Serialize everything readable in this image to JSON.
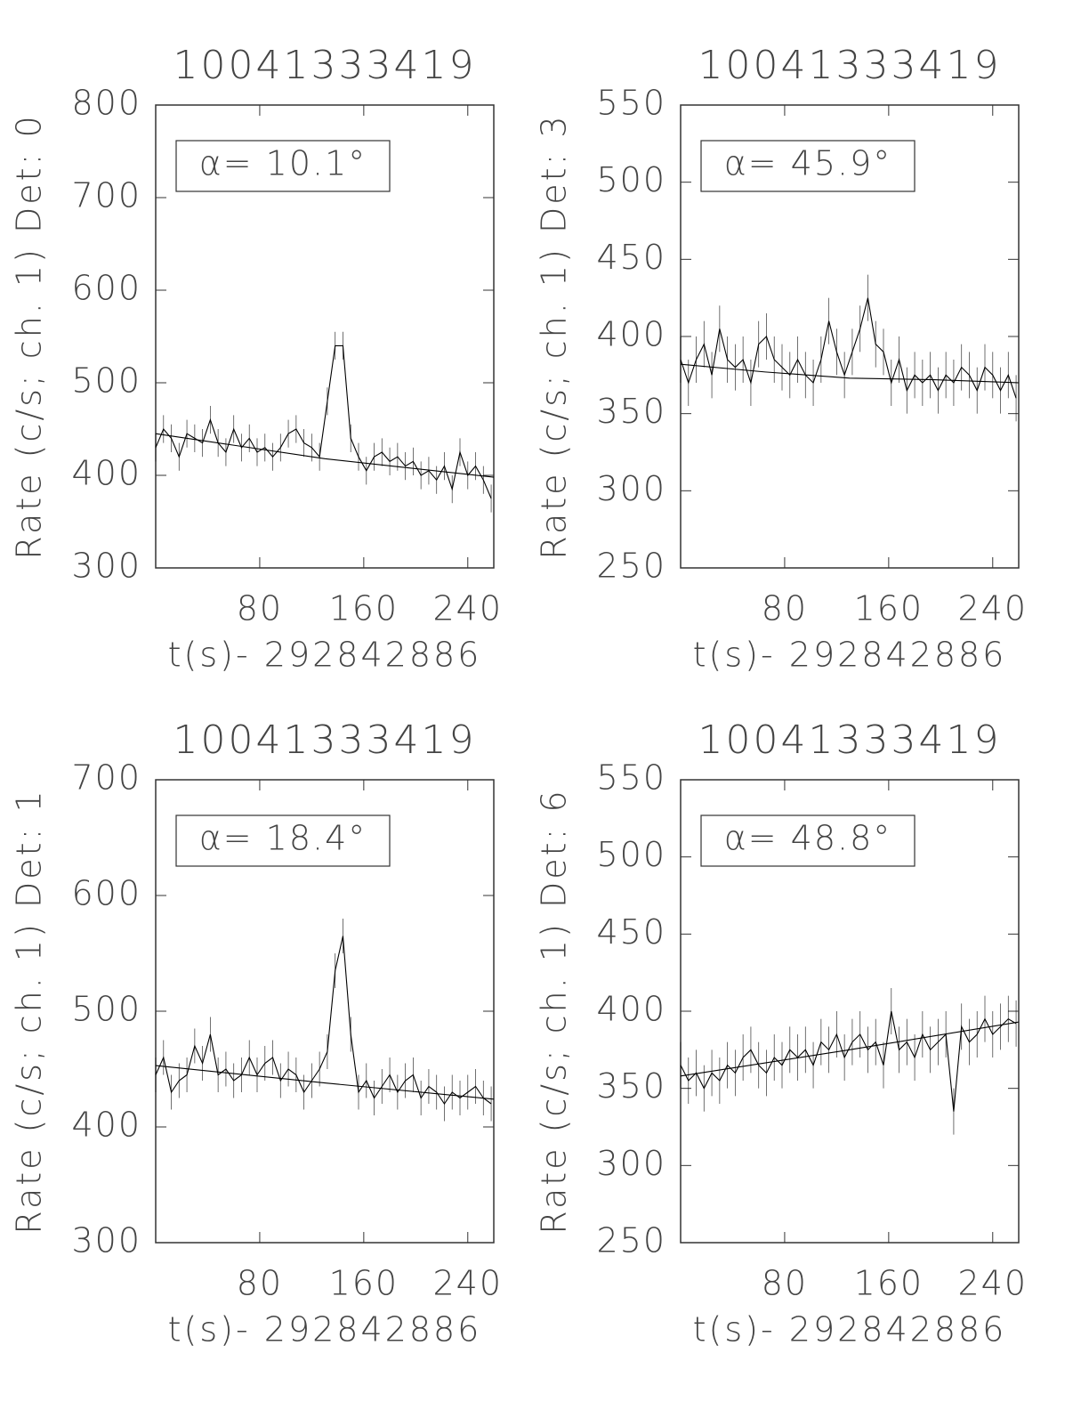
{
  "chart_data": [
    {
      "type": "line",
      "title": "10041333419",
      "xlabel": "t(s)- 292842886",
      "ylabel": "Rate (c/s; ch. 1) Det: 0",
      "annotation": "α= 10.1°",
      "xlim": [
        0,
        260
      ],
      "xticks": [
        80,
        160,
        240
      ],
      "ylim": [
        300,
        800
      ],
      "yticks": [
        300,
        400,
        500,
        600,
        700,
        800
      ],
      "x": [
        0,
        6,
        12,
        18,
        24,
        30,
        36,
        42,
        48,
        54,
        60,
        66,
        72,
        78,
        84,
        90,
        96,
        102,
        108,
        114,
        120,
        126,
        132,
        138,
        144,
        150,
        156,
        162,
        168,
        174,
        180,
        186,
        192,
        198,
        204,
        210,
        216,
        222,
        228,
        234,
        240,
        246,
        252,
        258
      ],
      "series": [
        {
          "color": "#000000",
          "yerr": 15,
          "values": [
            430,
            450,
            440,
            420,
            445,
            440,
            435,
            460,
            435,
            425,
            450,
            430,
            440,
            425,
            430,
            420,
            430,
            445,
            450,
            435,
            430,
            420,
            480,
            540,
            540,
            440,
            420,
            405,
            420,
            425,
            415,
            420,
            410,
            415,
            400,
            405,
            395,
            410,
            385,
            425,
            400,
            410,
            395,
            375
          ]
        },
        {
          "color": "#000000",
          "x": [
            0,
            130,
            260
          ],
          "values": [
            445,
            418,
            398
          ]
        }
      ]
    },
    {
      "type": "line",
      "title": "10041333419",
      "xlabel": "t(s)- 292842886",
      "ylabel": "Rate (c/s; ch. 1) Det: 3",
      "annotation": "α= 45.9°",
      "xlim": [
        0,
        260
      ],
      "xticks": [
        80,
        160,
        240
      ],
      "ylim": [
        250,
        550
      ],
      "yticks": [
        250,
        300,
        350,
        400,
        450,
        500,
        550
      ],
      "x": [
        0,
        6,
        12,
        18,
        24,
        30,
        36,
        42,
        48,
        54,
        60,
        66,
        72,
        78,
        84,
        90,
        96,
        102,
        108,
        114,
        120,
        126,
        132,
        138,
        144,
        150,
        156,
        162,
        168,
        174,
        180,
        186,
        192,
        198,
        204,
        210,
        216,
        222,
        228,
        234,
        240,
        246,
        252,
        258
      ],
      "series": [
        {
          "color": "#000000",
          "yerr": 15,
          "values": [
            385,
            370,
            385,
            395,
            375,
            405,
            385,
            380,
            385,
            370,
            395,
            400,
            385,
            380,
            375,
            385,
            375,
            370,
            385,
            410,
            390,
            375,
            390,
            405,
            425,
            395,
            390,
            370,
            385,
            365,
            375,
            370,
            375,
            365,
            375,
            370,
            380,
            375,
            365,
            380,
            375,
            365,
            375,
            360
          ]
        },
        {
          "color": "#000000",
          "x": [
            0,
            65,
            130,
            195,
            260
          ],
          "values": [
            382,
            377,
            373,
            372,
            370
          ]
        }
      ]
    },
    {
      "type": "line",
      "title": "10041333419",
      "xlabel": "t(s)- 292842886",
      "ylabel": "Rate (c/s; ch. 1) Det: 1",
      "annotation": "α= 18.4°",
      "xlim": [
        0,
        260
      ],
      "xticks": [
        80,
        160,
        240
      ],
      "ylim": [
        300,
        700
      ],
      "yticks": [
        300,
        400,
        500,
        600,
        700
      ],
      "x": [
        0,
        6,
        12,
        18,
        24,
        30,
        36,
        42,
        48,
        54,
        60,
        66,
        72,
        78,
        84,
        90,
        96,
        102,
        108,
        114,
        120,
        126,
        132,
        138,
        144,
        150,
        156,
        162,
        168,
        174,
        180,
        186,
        192,
        198,
        204,
        210,
        216,
        222,
        228,
        234,
        240,
        246,
        252,
        258
      ],
      "series": [
        {
          "color": "#000000",
          "yerr": 15,
          "values": [
            445,
            460,
            430,
            440,
            445,
            470,
            455,
            480,
            445,
            450,
            440,
            445,
            460,
            445,
            455,
            460,
            440,
            450,
            445,
            430,
            440,
            450,
            465,
            535,
            565,
            480,
            430,
            440,
            425,
            435,
            445,
            430,
            440,
            445,
            425,
            435,
            430,
            420,
            430,
            425,
            430,
            435,
            425,
            420
          ]
        },
        {
          "color": "#000000",
          "x": [
            0,
            130,
            260
          ],
          "values": [
            453,
            438,
            424
          ]
        }
      ]
    },
    {
      "type": "line",
      "title": "10041333419",
      "xlabel": "t(s)- 292842886",
      "ylabel": "Rate (c/s; ch. 1) Det: 6",
      "annotation": "α= 48.8°",
      "xlim": [
        0,
        260
      ],
      "xticks": [
        80,
        160,
        240
      ],
      "ylim": [
        250,
        550
      ],
      "yticks": [
        250,
        300,
        350,
        400,
        450,
        500,
        550
      ],
      "x": [
        0,
        6,
        12,
        18,
        24,
        30,
        36,
        42,
        48,
        54,
        60,
        66,
        72,
        78,
        84,
        90,
        96,
        102,
        108,
        114,
        120,
        126,
        132,
        138,
        144,
        150,
        156,
        162,
        168,
        174,
        180,
        186,
        192,
        198,
        204,
        210,
        216,
        222,
        228,
        234,
        240,
        246,
        252,
        258
      ],
      "series": [
        {
          "color": "#000000",
          "yerr": 15,
          "values": [
            365,
            355,
            360,
            350,
            360,
            355,
            365,
            360,
            370,
            375,
            365,
            360,
            370,
            365,
            375,
            370,
            375,
            365,
            380,
            375,
            385,
            370,
            380,
            385,
            375,
            380,
            365,
            400,
            375,
            380,
            370,
            385,
            375,
            380,
            385,
            335,
            390,
            380,
            385,
            395,
            385,
            390,
            395,
            392
          ]
        },
        {
          "color": "#000000",
          "x": [
            0,
            130,
            260
          ],
          "values": [
            358,
            375,
            393
          ]
        }
      ]
    }
  ]
}
